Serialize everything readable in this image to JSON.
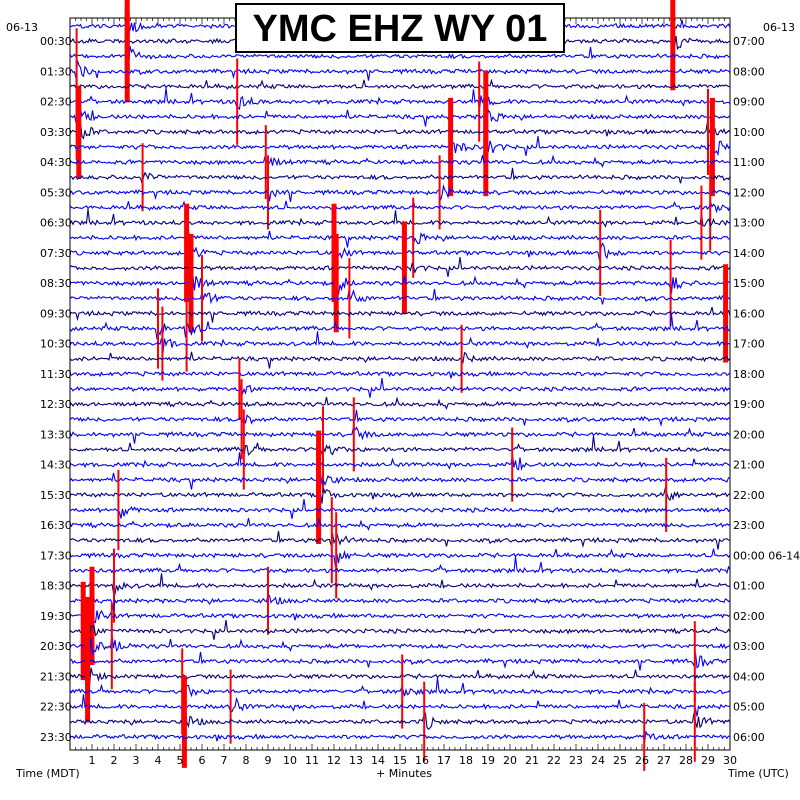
{
  "chart_data": {
    "type": "line",
    "title": "YMC EHZ WY 01",
    "date_left": "06-13",
    "date_right": "06-13",
    "xlabel": "+ Minutes",
    "xlabel_left": "Time (MDT)",
    "xlabel_right": "Time (UTC)",
    "xlim": [
      0,
      30
    ],
    "x_ticks": [
      1,
      2,
      3,
      4,
      5,
      6,
      7,
      8,
      9,
      10,
      11,
      12,
      13,
      14,
      15,
      16,
      17,
      18,
      19,
      20,
      21,
      22,
      23,
      24,
      25,
      26,
      27,
      28,
      29,
      30
    ],
    "left_time_labels": [
      "00:30",
      "01:30",
      "02:30",
      "03:30",
      "04:30",
      "05:30",
      "06:30",
      "07:30",
      "08:30",
      "09:30",
      "10:30",
      "11:30",
      "12:30",
      "13:30",
      "14:30",
      "15:30",
      "16:30",
      "17:30",
      "18:30",
      "19:30",
      "20:30",
      "21:30",
      "22:30",
      "23:30"
    ],
    "right_time_labels": [
      "07:00",
      "08:00",
      "09:00",
      "10:00",
      "11:00",
      "12:00",
      "13:00",
      "14:00",
      "15:00",
      "16:00",
      "17:00",
      "18:00",
      "19:00",
      "20:00",
      "21:00",
      "22:00",
      "23:00",
      "00:00 06-14",
      "01:00",
      "02:00",
      "03:00",
      "04:00",
      "05:00",
      "06:00"
    ],
    "trace_count": 48,
    "trace_minutes": 30,
    "trace_colors": [
      "#000080",
      "#ff0000",
      "#0000ff"
    ],
    "clipped_color": "#ff0000",
    "events": [
      {
        "row": 0,
        "minute": 2.6,
        "amp": 1.0
      },
      {
        "row": 1,
        "minute": 27.4,
        "amp": 1.0
      },
      {
        "row": 2,
        "minute": 2.6,
        "amp": 0.9
      },
      {
        "row": 3,
        "minute": 0.3,
        "amp": 0.8
      },
      {
        "row": 5,
        "minute": 7.6,
        "amp": 0.8
      },
      {
        "row": 5,
        "minute": 18.6,
        "amp": 0.7
      },
      {
        "row": 6,
        "minute": 0.3,
        "amp": 0.8
      },
      {
        "row": 6,
        "minute": 18.9,
        "amp": 0.9
      },
      {
        "row": 7,
        "minute": 0.4,
        "amp": 0.9
      },
      {
        "row": 7,
        "minute": 29.0,
        "amp": 0.8
      },
      {
        "row": 8,
        "minute": 18.9,
        "amp": 1.0
      },
      {
        "row": 8,
        "minute": 17.3,
        "amp": 1.0
      },
      {
        "row": 8,
        "minute": 29.2,
        "amp": 1.0
      },
      {
        "row": 9,
        "minute": 8.9,
        "amp": 0.6
      },
      {
        "row": 10,
        "minute": 3.3,
        "amp": 0.5
      },
      {
        "row": 11,
        "minute": 9.0,
        "amp": 0.6
      },
      {
        "row": 11,
        "minute": 16.8,
        "amp": 0.6
      },
      {
        "row": 12,
        "minute": 29.1,
        "amp": 0.8
      },
      {
        "row": 13,
        "minute": 28.7,
        "amp": 0.6
      },
      {
        "row": 14,
        "minute": 15.6,
        "amp": 0.7
      },
      {
        "row": 15,
        "minute": 5.3,
        "amp": 1.0
      },
      {
        "row": 15,
        "minute": 12.0,
        "amp": 1.0
      },
      {
        "row": 15,
        "minute": 24.1,
        "amp": 0.8
      },
      {
        "row": 16,
        "minute": 15.2,
        "amp": 0.9
      },
      {
        "row": 17,
        "minute": 5.5,
        "amp": 1.0
      },
      {
        "row": 17,
        "minute": 12.1,
        "amp": 1.0
      },
      {
        "row": 17,
        "minute": 27.3,
        "amp": 0.8
      },
      {
        "row": 18,
        "minute": 6.0,
        "amp": 0.8
      },
      {
        "row": 18,
        "minute": 12.7,
        "amp": 0.7
      },
      {
        "row": 19,
        "minute": 29.8,
        "amp": 1.0
      },
      {
        "row": 20,
        "minute": 4.0,
        "amp": 0.7
      },
      {
        "row": 20,
        "minute": 5.3,
        "amp": 0.8
      },
      {
        "row": 21,
        "minute": 4.2,
        "amp": 0.6
      },
      {
        "row": 22,
        "minute": 17.8,
        "amp": 0.5
      },
      {
        "row": 24,
        "minute": 7.7,
        "amp": 0.4
      },
      {
        "row": 26,
        "minute": 7.8,
        "amp": 0.7
      },
      {
        "row": 27,
        "minute": 12.9,
        "amp": 0.6
      },
      {
        "row": 28,
        "minute": 7.9,
        "amp": 0.7
      },
      {
        "row": 28,
        "minute": 11.5,
        "amp": 0.8
      },
      {
        "row": 29,
        "minute": 20.1,
        "amp": 0.6
      },
      {
        "row": 30,
        "minute": 11.3,
        "amp": 1.0
      },
      {
        "row": 31,
        "minute": 11.3,
        "amp": 1.0
      },
      {
        "row": 31,
        "minute": 27.1,
        "amp": 0.6
      },
      {
        "row": 32,
        "minute": 2.2,
        "amp": 0.7
      },
      {
        "row": 34,
        "minute": 11.9,
        "amp": 0.8
      },
      {
        "row": 35,
        "minute": 12.1,
        "amp": 0.8
      },
      {
        "row": 37,
        "minute": 2.0,
        "amp": 0.6
      },
      {
        "row": 38,
        "minute": 9.0,
        "amp": 0.5
      },
      {
        "row": 39,
        "minute": 1.0,
        "amp": 1.0
      },
      {
        "row": 40,
        "minute": 0.6,
        "amp": 1.0
      },
      {
        "row": 41,
        "minute": 0.8,
        "amp": 1.0
      },
      {
        "row": 41,
        "minute": 1.9,
        "amp": 0.8
      },
      {
        "row": 42,
        "minute": 28.4,
        "amp": 0.7
      },
      {
        "row": 43,
        "minute": 0.8,
        "amp": 0.9
      },
      {
        "row": 44,
        "minute": 5.1,
        "amp": 0.8
      },
      {
        "row": 44,
        "minute": 15.1,
        "amp": 0.6
      },
      {
        "row": 45,
        "minute": 7.3,
        "amp": 0.6
      },
      {
        "row": 46,
        "minute": 5.2,
        "amp": 0.9
      },
      {
        "row": 46,
        "minute": 16.1,
        "amp": 0.7
      },
      {
        "row": 46,
        "minute": 28.4,
        "amp": 0.7
      },
      {
        "row": 47,
        "minute": 26.1,
        "amp": 0.5
      }
    ]
  }
}
